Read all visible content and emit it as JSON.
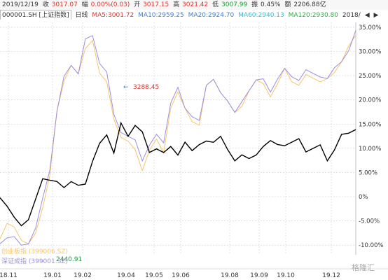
{
  "header": {
    "date": "2019/12/19",
    "close_label": "收",
    "close": "3017.07",
    "change_label": "幅",
    "change": "0.00%(0.03)",
    "open_label": "开",
    "open": "3017.15",
    "high_label": "高",
    "high": "3021.42",
    "low_label": "低",
    "low": "3007.99",
    "amplitude_label": "振",
    "amplitude": "0.45%",
    "amount_label": "额",
    "amount": "2206.88亿"
  },
  "indicator_bar": {
    "code": "000001.SH [上证指数]",
    "period_button": "日线",
    "ma5": "MA5:3001.72",
    "ma10": "MA10:2959.25",
    "ma20": "MA20:2924.70",
    "ma60": "MA60:2940.13",
    "ma120": "MA120:2930.80",
    "year_button": "2018/",
    "prev_icon": "triangle-left-icon",
    "next_icon": "triangle-right-icon"
  },
  "annotations": {
    "high_label": "3288.45",
    "low_label": "2440.91"
  },
  "legend": {
    "chinext": "创业板指 (399006.SZ)",
    "szse": "深证成指 (399001.SZ)"
  },
  "watermark": "格隆汇",
  "colors": {
    "shanghai": "#000000",
    "chinext": "#f5c56a",
    "szse": "#9c8ee0",
    "up": "#e0332c",
    "down": "#1b9b3a",
    "grid": "#cccccc"
  },
  "chart_data": {
    "type": "line",
    "x_ticks": [
      "18.11",
      "19.01",
      "19.02",
      "19.04",
      "19.05",
      "19.06",
      "19.08",
      "19.09",
      "19.10",
      "19.12"
    ],
    "ylabel_ticks": [
      "35.00%",
      "30.00%",
      "25.00%",
      "20.00%",
      "15.00%",
      "10.00%",
      "5.00%",
      "0%",
      "-5.00%",
      "-10.00%"
    ],
    "ylim": [
      -12,
      36
    ],
    "grid": "dashed",
    "series": [
      {
        "name": "上证指数",
        "x": [
          0,
          4,
          8,
          12,
          16,
          20,
          24,
          28,
          32,
          36,
          40,
          44,
          48,
          52,
          56,
          60,
          64,
          68,
          72,
          76,
          80,
          84,
          88,
          92,
          96,
          100,
          104,
          108,
          112,
          116,
          120,
          124,
          128,
          132,
          136,
          140,
          144,
          148,
          152,
          156,
          160,
          164,
          168,
          172,
          176,
          180,
          184,
          188,
          192,
          196,
          200
        ],
        "values": [
          0.5,
          -1.5,
          -4,
          -6,
          -5,
          -1,
          3,
          4,
          3.5,
          2,
          3,
          2,
          2,
          8,
          11.5,
          13,
          9,
          15,
          12,
          14,
          14,
          9.5,
          10,
          9,
          10,
          8,
          12,
          10,
          11,
          11.5,
          11,
          12,
          9,
          8,
          9,
          8,
          8.5,
          10,
          11,
          11.5,
          11,
          11.5,
          12,
          9,
          9.5,
          10,
          8,
          10,
          13,
          13,
          13.5
        ]
      },
      {
        "name": "创业板指",
        "x": [
          0,
          4,
          8,
          12,
          16,
          20,
          24,
          28,
          32,
          36,
          40,
          44,
          48,
          52,
          56,
          60,
          64,
          68,
          72,
          76,
          80,
          84,
          88,
          92,
          96,
          100,
          104,
          108,
          112,
          116,
          120,
          124,
          128,
          132,
          136,
          140,
          144,
          148,
          152,
          156,
          160,
          164,
          168,
          172,
          176,
          180,
          184,
          188,
          192,
          196,
          200
        ],
        "values": [
          -8,
          -5,
          -6,
          -9,
          -10,
          -8,
          -3,
          5,
          18,
          24,
          27,
          25,
          30,
          33,
          26,
          24,
          16,
          12,
          11,
          9,
          6,
          10,
          12,
          9,
          18,
          21,
          19,
          16,
          15,
          23,
          24,
          21,
          19,
          18,
          19,
          22,
          24,
          23,
          20,
          24,
          27,
          24,
          23,
          25,
          24,
          23,
          25,
          26,
          28,
          31,
          33
        ]
      },
      {
        "name": "深证成指",
        "x": [
          0,
          4,
          8,
          12,
          16,
          20,
          24,
          28,
          32,
          36,
          40,
          44,
          48,
          52,
          56,
          60,
          64,
          68,
          72,
          76,
          80,
          84,
          88,
          92,
          96,
          100,
          104,
          108,
          112,
          116,
          120,
          124,
          128,
          132,
          136,
          140,
          144,
          148,
          152,
          156,
          160,
          164,
          168,
          172,
          176,
          180,
          184,
          188,
          192,
          196,
          200
        ],
        "values": [
          -9,
          -8,
          -8,
          -10,
          -10,
          -7,
          -1,
          6,
          18,
          25,
          27,
          25,
          32,
          34,
          28,
          26,
          17,
          13,
          12,
          11,
          8,
          11,
          13,
          11,
          19,
          22,
          19,
          17,
          16,
          23,
          24,
          21,
          19,
          18,
          20,
          22,
          24,
          24,
          21,
          25,
          27,
          25,
          24,
          26,
          25,
          24,
          25,
          27,
          28,
          30,
          34
        ]
      }
    ]
  }
}
